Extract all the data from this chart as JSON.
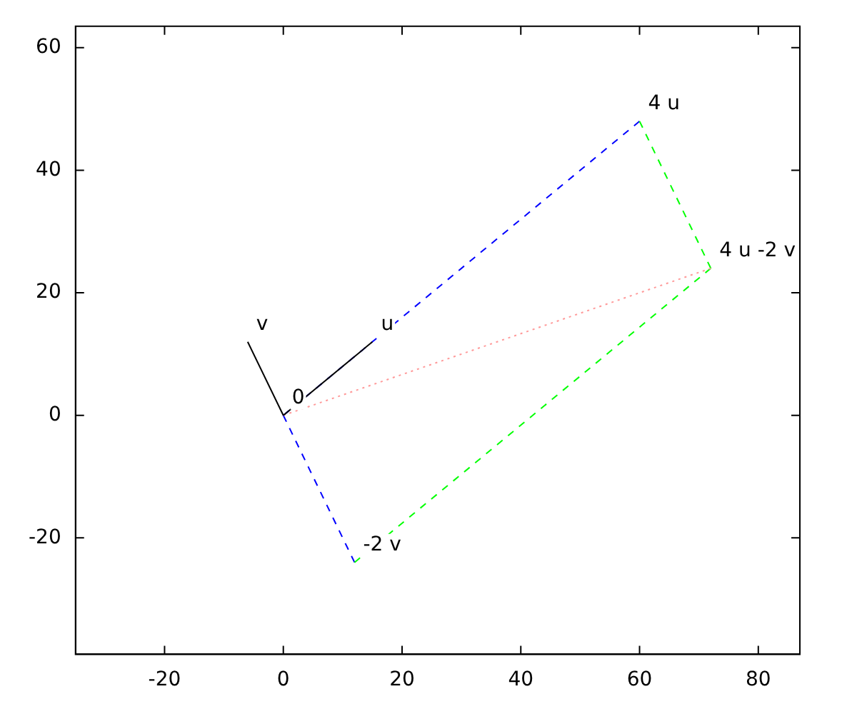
{
  "chart_data": {
    "type": "line",
    "xlim": [
      -35,
      87
    ],
    "ylim": [
      -39,
      63.5
    ],
    "xticks": [
      -20,
      0,
      20,
      40,
      60,
      80
    ],
    "yticks": [
      -20,
      0,
      20,
      40,
      60
    ],
    "grid": false,
    "legend": false,
    "marker": "none",
    "series": [
      {
        "color": "#0000ff",
        "line_style": "dashed",
        "x": [
          0,
          60
        ],
        "values": [
          0,
          48
        ]
      },
      {
        "color": "#0000ff",
        "line_style": "dashed",
        "x": [
          0,
          12
        ],
        "values": [
          0,
          -24
        ]
      },
      {
        "color": "#00ff00",
        "line_style": "dashed",
        "x": [
          60,
          72
        ],
        "values": [
          48,
          24
        ]
      },
      {
        "color": "#00ff00",
        "line_style": "dashed",
        "x": [
          12,
          72
        ],
        "values": [
          -24,
          24
        ]
      },
      {
        "color": "#ff9999",
        "line_style": "dotted",
        "x": [
          0,
          72
        ],
        "values": [
          0,
          24
        ]
      },
      {
        "color": "#000000",
        "line_style": "solid",
        "x": [
          0,
          15
        ],
        "values": [
          0,
          12
        ]
      },
      {
        "color": "#000000",
        "line_style": "solid",
        "x": [
          0,
          -6
        ],
        "values": [
          0,
          12
        ]
      }
    ],
    "annotations": [
      {
        "text": "u",
        "x": 15,
        "y": 12
      },
      {
        "text": "v",
        "x": -6,
        "y": 12
      },
      {
        "text": "0",
        "x": 0,
        "y": 0
      },
      {
        "text": "4 u",
        "x": 60,
        "y": 48
      },
      {
        "text": "4 u -2 v",
        "x": 72,
        "y": 24
      },
      {
        "text": "-2 v",
        "x": 12,
        "y": -24
      }
    ]
  }
}
